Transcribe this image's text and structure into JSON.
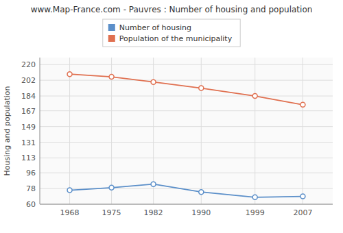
{
  "chart_data": {
    "type": "line",
    "title": "www.Map-France.com - Pauvres : Number of housing and population",
    "ylabel": "Housing and population",
    "x": [
      1968,
      1975,
      1982,
      1990,
      1999,
      2007
    ],
    "series": [
      {
        "name": "Number of housing",
        "color": "#5b8fc9",
        "values": [
          76,
          79,
          83,
          74,
          68,
          69
        ]
      },
      {
        "name": "Population of the municipality",
        "color": "#e07050",
        "values": [
          209,
          206,
          200,
          193,
          184,
          174
        ]
      }
    ],
    "xlim": [
      1963,
      2012
    ],
    "xticks": [
      1968,
      1975,
      1982,
      1990,
      1999,
      2007
    ],
    "ylim": [
      60,
      228
    ],
    "yticks": [
      60,
      78,
      96,
      113,
      131,
      149,
      167,
      184,
      202,
      220
    ],
    "grid": true,
    "legend": "top",
    "marker": "circle"
  }
}
